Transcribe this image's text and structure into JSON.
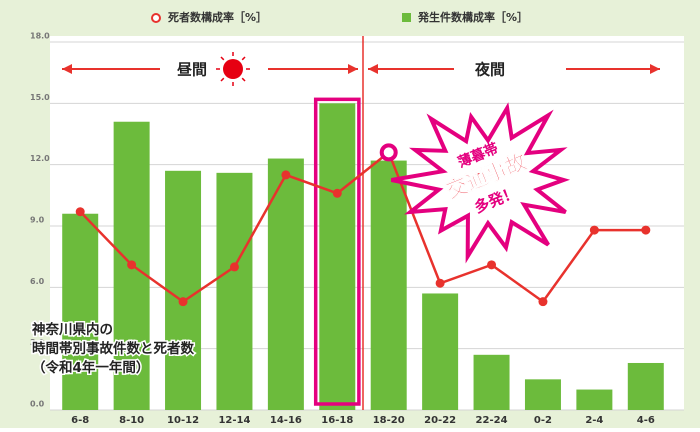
{
  "chart_data": {
    "type": "bar-line",
    "categories": [
      "6-8",
      "8-10",
      "10-12",
      "12-14",
      "14-16",
      "16-18",
      "18-20",
      "20-22",
      "22-24",
      "0-2",
      "2-4",
      "4-6"
    ],
    "series": [
      {
        "name": "死者数構成率［%］",
        "type": "line",
        "color": "#e8322d",
        "values": [
          9.7,
          7.1,
          5.3,
          7.0,
          11.5,
          10.6,
          12.6,
          6.2,
          7.1,
          5.3,
          8.8,
          8.8
        ]
      },
      {
        "name": "発生件数構成率［%］",
        "type": "bar",
        "color": "#6cbb3c",
        "values": [
          9.6,
          14.1,
          11.7,
          11.6,
          12.3,
          15.0,
          12.2,
          5.7,
          2.7,
          1.5,
          1.0,
          2.3
        ]
      }
    ],
    "ylim": [
      0,
      18
    ],
    "yticks": [
      {
        "value": 0,
        "label": "0.0"
      },
      {
        "value": 3,
        "label": "3.0"
      },
      {
        "value": 6,
        "label": "6.0"
      },
      {
        "value": 9,
        "label": "9.0"
      },
      {
        "value": 12,
        "label": "12.0"
      },
      {
        "value": 15,
        "label": "15.0"
      },
      {
        "value": 18,
        "label": "18.0"
      }
    ],
    "grid": true,
    "annotations": {
      "day": "昼間",
      "night": "夜間",
      "burst": [
        "薄暮帯",
        "交通事故",
        "多発！"
      ],
      "caption": [
        "神奈川県内の",
        "時間帯別事故件数と死者数",
        "（令和4年一年間）"
      ]
    }
  }
}
